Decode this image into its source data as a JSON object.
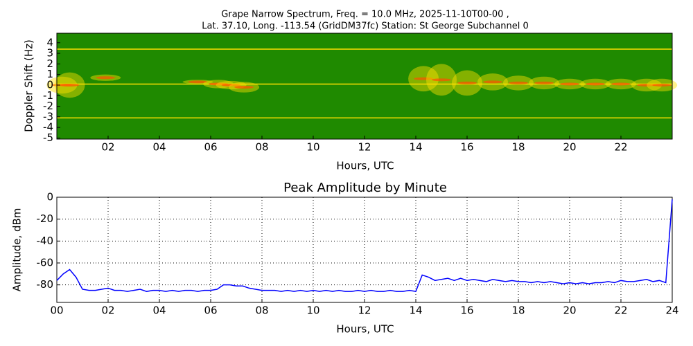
{
  "chart_data": [
    {
      "type": "spectrogram",
      "title": "Grape Narrow Spectrum, Freq. = 10.0 MHz, 2025-11-10T00-00 ,",
      "subtitle": "Lat.  37.10, Long. -113.54 (GridDM37fc) Station: St George Subchannel 0",
      "xlabel": "Hours, UTC",
      "ylabel": "Doppler Shift (Hz)",
      "background": "#1f8a00",
      "color": "#ffe000",
      "x": [
        0.2,
        0.5,
        1.9,
        5.5,
        6.3,
        6.8,
        7.3,
        14.3,
        15,
        16,
        17,
        18,
        19,
        20,
        21,
        22,
        23,
        23.6
      ],
      "values": [
        0,
        0,
        0.7,
        0.3,
        0.1,
        0,
        -0.2,
        0.6,
        0.5,
        0.2,
        0.3,
        0.2,
        0.2,
        0.1,
        0.1,
        0.1,
        0,
        0
      ],
      "spread": [
        0.8,
        1.2,
        0.3,
        0.2,
        0.4,
        0.4,
        0.5,
        1.2,
        1.5,
        1.2,
        0.8,
        0.7,
        0.6,
        0.5,
        0.5,
        0.5,
        0.6,
        0.6
      ],
      "lines": [
        3.4,
        0.1,
        -3.1
      ],
      "xlim": [
        0,
        24
      ],
      "xticks": [
        {
          "value": 2,
          "label": "02"
        },
        {
          "value": 4,
          "label": "04"
        },
        {
          "value": 6,
          "label": "06"
        },
        {
          "value": 8,
          "label": "08"
        },
        10,
        12,
        14,
        16,
        18,
        20,
        22
      ],
      "ylim": [
        -5.1,
        4.9
      ],
      "yticks": [
        -5,
        -4,
        -3,
        -2,
        -1,
        0,
        1,
        2,
        3,
        4
      ]
    },
    {
      "type": "line",
      "title": "Peak Amplitude by Minute",
      "xlabel": "Hours, UTC",
      "ylabel": "Amplitude, dBm",
      "color": "#0000ff",
      "grid": true,
      "x": [
        0,
        0.25,
        0.5,
        0.75,
        1,
        1.25,
        1.5,
        1.75,
        2,
        2.25,
        2.5,
        2.75,
        3,
        3.25,
        3.5,
        3.75,
        4,
        4.25,
        4.5,
        4.75,
        5,
        5.25,
        5.5,
        5.75,
        6,
        6.25,
        6.5,
        6.75,
        7,
        7.25,
        7.5,
        7.75,
        8,
        8.25,
        8.5,
        8.75,
        9,
        9.25,
        9.5,
        9.75,
        10,
        10.25,
        10.5,
        10.75,
        11,
        11.25,
        11.5,
        11.75,
        12,
        12.25,
        12.5,
        12.75,
        13,
        13.25,
        13.5,
        13.75,
        14,
        14.25,
        14.5,
        14.75,
        15,
        15.25,
        15.5,
        15.75,
        16,
        16.25,
        16.5,
        16.75,
        17,
        17.25,
        17.5,
        17.75,
        18,
        18.25,
        18.5,
        18.75,
        19,
        19.25,
        19.5,
        19.75,
        20,
        20.25,
        20.5,
        20.75,
        21,
        21.25,
        21.5,
        21.75,
        22,
        22.25,
        22.5,
        22.75,
        23,
        23.25,
        23.5,
        23.75,
        24
      ],
      "values": [
        -76,
        -70,
        -66,
        -73,
        -84,
        -85,
        -85,
        -84,
        -83,
        -85,
        -85,
        -86,
        -85,
        -84,
        -86,
        -85,
        -85,
        -86,
        -85,
        -86,
        -85,
        -85,
        -86,
        -85,
        -85,
        -84,
        -80,
        -80,
        -81,
        -81,
        -83,
        -84,
        -85,
        -85,
        -85,
        -86,
        -85,
        -86,
        -85,
        -86,
        -85,
        -86,
        -85,
        -86,
        -85,
        -86,
        -86,
        -85,
        -86,
        -85,
        -86,
        -86,
        -85,
        -86,
        -86,
        -85,
        -86,
        -71,
        -73,
        -76,
        -75,
        -74,
        -76,
        -74,
        -76,
        -75,
        -76,
        -77,
        -75,
        -76,
        -77,
        -76,
        -77,
        -77,
        -78,
        -77,
        -78,
        -77,
        -78,
        -79,
        -78,
        -79,
        -78,
        -79,
        -78,
        -78,
        -77,
        -78,
        -76,
        -77,
        -77,
        -76,
        -75,
        -77,
        -76,
        -78,
        -2
      ],
      "xlim": [
        0,
        24
      ],
      "xticks": [
        {
          "value": 0,
          "label": "00"
        },
        {
          "value": 2,
          "label": "02"
        },
        {
          "value": 4,
          "label": "04"
        },
        {
          "value": 6,
          "label": "06"
        },
        {
          "value": 8,
          "label": "08"
        },
        10,
        12,
        14,
        16,
        18,
        20,
        22,
        24
      ],
      "ylim": [
        -96,
        0
      ],
      "yticks": [
        -80,
        -60,
        -40,
        -20,
        0
      ]
    }
  ]
}
